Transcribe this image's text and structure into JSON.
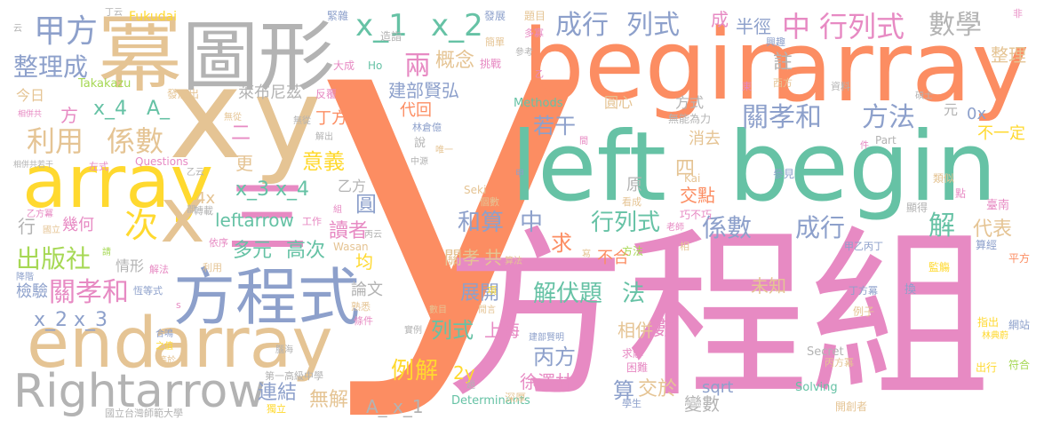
{
  "palette": {
    "orange": "#fc8d62",
    "teal": "#66c2a5",
    "pink": "#e78ac3",
    "blue": "#8da0cb",
    "tan": "#e5c494",
    "yellow": "#ffd92f",
    "green": "#a6d854",
    "gray": "#b3b3b3"
  },
  "words": [
    {
      "text": "y",
      "color": "orange"
    },
    {
      "text": "方程組",
      "color": "pink"
    },
    {
      "text": "begin",
      "color": "orange"
    },
    {
      "text": "array",
      "color": "orange"
    },
    {
      "text": "left",
      "color": "teal"
    },
    {
      "text": "begin",
      "color": "teal"
    },
    {
      "text": "冪",
      "color": "tan"
    },
    {
      "text": "圖形",
      "color": "gray"
    },
    {
      "text": "x",
      "color": "tan"
    },
    {
      "text": "y",
      "color": "tan"
    },
    {
      "text": "array",
      "color": "yellow"
    },
    {
      "text": "x",
      "color": "tan"
    },
    {
      "text": "三",
      "color": "pink"
    },
    {
      "text": "方程式",
      "color": "blue"
    },
    {
      "text": "end",
      "color": "tan"
    },
    {
      "text": "array",
      "color": "tan"
    },
    {
      "text": "Rightarrow",
      "color": "gray"
    },
    {
      "text": "甲方",
      "color": "blue"
    },
    {
      "text": "整理成",
      "color": "blue"
    },
    {
      "text": "x_1",
      "color": "teal"
    },
    {
      "text": "x_2",
      "color": "teal"
    },
    {
      "text": "成行",
      "color": "blue"
    },
    {
      "text": "列式",
      "color": "blue"
    },
    {
      "text": "中",
      "color": "pink"
    },
    {
      "text": "行列式",
      "color": "pink"
    },
    {
      "text": "數學",
      "color": "gray"
    },
    {
      "text": "關孝和",
      "color": "blue"
    },
    {
      "text": "方法",
      "color": "blue"
    },
    {
      "text": "利用",
      "color": "tan"
    },
    {
      "text": "係數",
      "color": "tan"
    },
    {
      "text": "x_4",
      "color": "teal"
    },
    {
      "text": "A_",
      "color": "teal"
    },
    {
      "text": "次",
      "color": "yellow"
    },
    {
      "text": "出版社",
      "color": "green"
    },
    {
      "text": "關孝和",
      "color": "pink"
    },
    {
      "text": "x_2 x_3",
      "color": "blue"
    },
    {
      "text": "兩",
      "color": "pink"
    },
    {
      "text": "概念",
      "color": "tan"
    },
    {
      "text": "建部賢弘",
      "color": "blue"
    },
    {
      "text": "代回",
      "color": "orange"
    },
    {
      "text": "若干",
      "color": "blue"
    },
    {
      "text": "丁方",
      "color": "orange"
    },
    {
      "text": "二",
      "color": "pink"
    },
    {
      "text": "更",
      "color": "tan"
    },
    {
      "text": "意義",
      "color": "yellow"
    },
    {
      "text": "x_3 x_4",
      "color": "teal"
    },
    {
      "text": "4x",
      "color": "tan"
    },
    {
      "text": "leftarrow",
      "color": "teal"
    },
    {
      "text": "圓",
      "color": "blue"
    },
    {
      "text": "讀者",
      "color": "pink"
    },
    {
      "text": "多元",
      "color": "teal"
    },
    {
      "text": "高次",
      "color": "teal"
    },
    {
      "text": "均",
      "color": "yellow"
    },
    {
      "text": "和算",
      "color": "blue"
    },
    {
      "text": "中",
      "color": "blue"
    },
    {
      "text": "求",
      "color": "orange"
    },
    {
      "text": "行列式",
      "color": "teal"
    },
    {
      "text": "係數",
      "color": "blue"
    },
    {
      "text": "成行",
      "color": "blue"
    },
    {
      "text": "解",
      "color": "teal"
    },
    {
      "text": "代表",
      "color": "tan"
    },
    {
      "text": "四",
      "color": "tan"
    },
    {
      "text": "交點",
      "color": "orange"
    },
    {
      "text": "關孝",
      "color": "tan"
    },
    {
      "text": "共",
      "color": "tan"
    },
    {
      "text": "展開",
      "color": "blue"
    },
    {
      "text": "解伏題",
      "color": "teal"
    },
    {
      "text": "法",
      "color": "teal"
    },
    {
      "text": "不合",
      "color": "orange"
    },
    {
      "text": "未知",
      "color": "tan"
    },
    {
      "text": "數",
      "color": "pink"
    },
    {
      "text": "列式",
      "color": "teal"
    },
    {
      "text": "上海",
      "color": "pink"
    },
    {
      "text": "丙方",
      "color": "blue"
    },
    {
      "text": "例",
      "color": "yellow"
    },
    {
      "text": "解",
      "color": "yellow"
    },
    {
      "text": "2y",
      "color": "yellow"
    },
    {
      "text": "徐澤林",
      "color": "pink"
    },
    {
      "text": "算",
      "color": "blue"
    },
    {
      "text": "交於",
      "color": "tan"
    },
    {
      "text": "相併",
      "color": "tan"
    },
    {
      "text": "無解",
      "color": "tan"
    },
    {
      "text": "A_ x_1",
      "color": "gray"
    },
    {
      "text": "連結",
      "color": "blue"
    },
    {
      "text": "sqrt",
      "color": "blue"
    },
    {
      "text": "變數",
      "color": "gray"
    },
    {
      "text": "半徑",
      "color": "blue"
    },
    {
      "text": "整理",
      "color": "tan"
    },
    {
      "text": "方式",
      "color": "gray"
    },
    {
      "text": "元",
      "color": "gray"
    },
    {
      "text": "0x",
      "color": "blue"
    },
    {
      "text": "不一定",
      "color": "yellow"
    },
    {
      "text": "消去",
      "color": "tan"
    },
    {
      "text": "註",
      "color": "gray"
    },
    {
      "text": "萊布尼茲",
      "color": "gray"
    },
    {
      "text": "論文",
      "color": "gray"
    },
    {
      "text": "檢驗",
      "color": "blue"
    },
    {
      "text": "情形",
      "color": "gray"
    },
    {
      "text": "幾何",
      "color": "pink"
    },
    {
      "text": "行",
      "color": "gray"
    },
    {
      "text": "今日",
      "color": "tan"
    },
    {
      "text": "乙方",
      "color": "gray"
    },
    {
      "text": "原",
      "color": "gray"
    },
    {
      "text": "方",
      "color": "pink"
    },
    {
      "text": "成",
      "color": "pink"
    },
    {
      "text": "圓心",
      "color": "tan"
    },
    {
      "text": "Takakazu",
      "color": "green"
    },
    {
      "text": "Fukudai",
      "color": "yellow"
    },
    {
      "text": "發展出",
      "color": "tan"
    },
    {
      "text": "無能為力",
      "color": "gray"
    },
    {
      "text": "Methods",
      "color": "teal"
    },
    {
      "text": "Determinants",
      "color": "teal"
    },
    {
      "text": "Solving",
      "color": "teal"
    },
    {
      "text": "Secret",
      "color": "gray"
    },
    {
      "text": "Questions",
      "color": "pink"
    },
    {
      "text": "Seki",
      "color": "tan"
    },
    {
      "text": "Kai",
      "color": "tan"
    },
    {
      "text": "Part",
      "color": "gray"
    },
    {
      "text": "Wasan",
      "color": "tan"
    },
    {
      "text": "Ho",
      "color": "teal"
    },
    {
      "text": "國立台灣師範大學",
      "color": "gray"
    },
    {
      "text": "第一高級中學",
      "color": "gray"
    },
    {
      "text": "巧不巧",
      "color": "pink"
    },
    {
      "text": "臺南",
      "color": "pink"
    },
    {
      "text": "網站",
      "color": "blue"
    },
    {
      "text": "符合",
      "color": "green"
    },
    {
      "text": "平方",
      "color": "orange"
    },
    {
      "text": "類似",
      "color": "tan"
    },
    {
      "text": "參見",
      "color": "blue"
    },
    {
      "text": "顯得",
      "color": "gray"
    },
    {
      "text": "算經",
      "color": "blue"
    },
    {
      "text": "監觴",
      "color": "yellow"
    },
    {
      "text": "指出",
      "color": "yellow"
    },
    {
      "text": "林典蔚",
      "color": "yellow"
    },
    {
      "text": "丙方冪",
      "color": "tan"
    },
    {
      "text": "出行",
      "color": "yellow"
    },
    {
      "text": "開創者",
      "color": "tan"
    },
    {
      "text": "學生",
      "color": "blue"
    },
    {
      "text": "深厚",
      "color": "tan"
    },
    {
      "text": "困難",
      "color": "pink"
    },
    {
      "text": "求解",
      "color": "pink"
    },
    {
      "text": "方法",
      "color": "green"
    },
    {
      "text": "甲乙丙丁",
      "color": "blue"
    },
    {
      "text": "丁方冪",
      "color": "blue"
    },
    {
      "text": "例子",
      "color": "tan"
    },
    {
      "text": "換",
      "color": "blue"
    },
    {
      "text": "緊雜",
      "color": "blue"
    },
    {
      "text": "發展",
      "color": "blue"
    },
    {
      "text": "題目",
      "color": "tan"
    },
    {
      "text": "簡單",
      "color": "tan"
    },
    {
      "text": "挑戰",
      "color": "pink"
    },
    {
      "text": "多寡",
      "color": "pink"
    },
    {
      "text": "參考",
      "color": "gray"
    },
    {
      "text": "興趣",
      "color": "blue"
    },
    {
      "text": "西方",
      "color": "tan"
    },
    {
      "text": "資料",
      "color": "gray"
    },
    {
      "text": "碩士",
      "color": "gray"
    },
    {
      "text": "造詣",
      "color": "gray"
    },
    {
      "text": "大成",
      "color": "pink"
    },
    {
      "text": "反覆",
      "color": "pink"
    },
    {
      "text": "轉載",
      "color": "gray"
    },
    {
      "text": "乙方冪",
      "color": "pink"
    },
    {
      "text": "國立",
      "color": "tan"
    },
    {
      "text": "依序",
      "color": "pink"
    },
    {
      "text": "解法",
      "color": "pink"
    },
    {
      "text": "利用",
      "color": "tan"
    },
    {
      "text": "恆等式",
      "color": "blue"
    },
    {
      "text": "熟悉",
      "color": "tan"
    },
    {
      "text": "條件",
      "color": "pink"
    },
    {
      "text": "合鳴",
      "color": "blue"
    },
    {
      "text": "之值",
      "color": "yellow"
    },
    {
      "text": "等於",
      "color": "tan"
    },
    {
      "text": "獨立",
      "color": "yellow"
    },
    {
      "text": "實例",
      "color": "gray"
    },
    {
      "text": "數目",
      "color": "tan"
    },
    {
      "text": "腦海",
      "color": "gray"
    },
    {
      "text": "降階",
      "color": "blue"
    },
    {
      "text": "相併共若干",
      "color": "gray"
    },
    {
      "text": "左式",
      "color": "pink"
    },
    {
      "text": "工作",
      "color": "pink"
    },
    {
      "text": "丁云",
      "color": "gray"
    },
    {
      "text": "乙云",
      "color": "gray"
    },
    {
      "text": "丙云",
      "color": "gray"
    },
    {
      "text": "東",
      "color": "pink"
    },
    {
      "text": "說",
      "color": "gray"
    },
    {
      "text": "林倉億",
      "color": "blue"
    },
    {
      "text": "唯一",
      "color": "tan"
    },
    {
      "text": "中源",
      "color": "gray"
    },
    {
      "text": "看成",
      "color": "tan"
    },
    {
      "text": "老師",
      "color": "pink"
    },
    {
      "text": "個數",
      "color": "tan"
    },
    {
      "text": "建部賢明",
      "color": "blue"
    },
    {
      "text": "相",
      "color": "tan"
    },
    {
      "text": "寫",
      "color": "tan"
    },
    {
      "text": "點",
      "color": "pink"
    },
    {
      "text": "非",
      "color": "pink"
    },
    {
      "text": "件",
      "color": "pink"
    },
    {
      "text": "部",
      "color": "gray"
    },
    {
      "text": "組",
      "color": "pink"
    },
    {
      "text": "間",
      "color": "pink"
    },
    {
      "text": "乙",
      "color": "pink"
    },
    {
      "text": "云",
      "color": "gray"
    },
    {
      "text": "甲",
      "color": "blue"
    },
    {
      "text": "s",
      "color": "pink"
    },
    {
      "text": "請",
      "color": "green"
    },
    {
      "text": "無從",
      "color": "tan"
    },
    {
      "text": "閒言",
      "color": "tan"
    },
    {
      "text": "項",
      "color": "yellow"
    },
    {
      "text": "算法",
      "color": "tan"
    },
    {
      "text": "題",
      "color": "gray"
    },
    {
      "text": "解出",
      "color": "gray"
    },
    {
      "text": "無從",
      "color": "gray"
    },
    {
      "text": "相併共",
      "color": "pink"
    }
  ]
}
